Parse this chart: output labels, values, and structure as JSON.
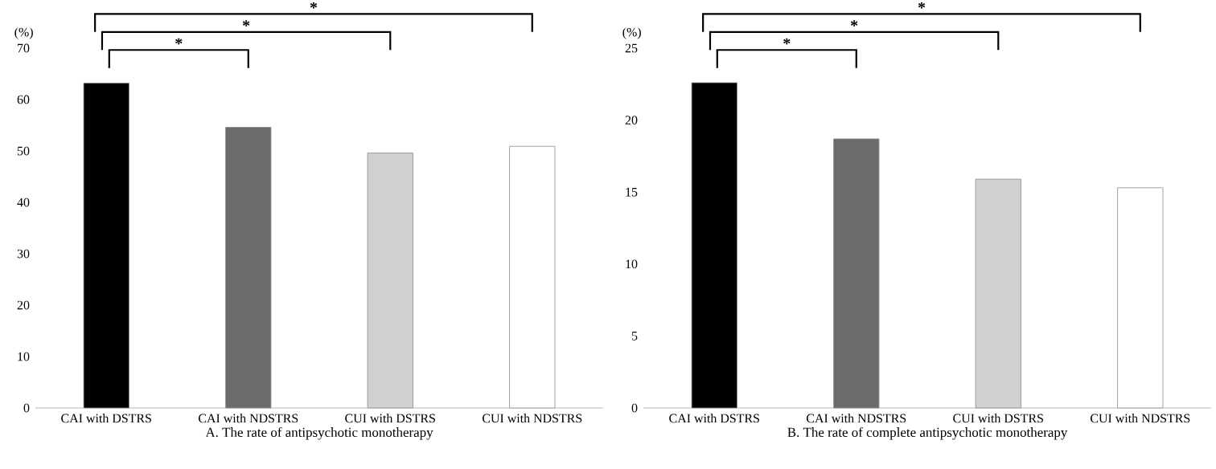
{
  "chart_data": [
    {
      "type": "bar",
      "xlabel": "A. The rate of antipsychotic monotherapy",
      "ylabel": "(%)",
      "categories": [
        "CAI with DSTRS",
        "CAI with NDSTRS",
        "CUI with DSTRS",
        "CUI with NDSTRS"
      ],
      "values": [
        63.2,
        54.6,
        49.6,
        50.9
      ],
      "colors": [
        "#000000",
        "#6b6b6b",
        "#d0d0d0",
        "#ffffff"
      ],
      "ylim": [
        0,
        70
      ],
      "yticks": [
        0,
        10,
        20,
        30,
        40,
        50,
        60,
        70
      ],
      "annotations": [
        "*",
        "*",
        "*"
      ]
    },
    {
      "type": "bar",
      "xlabel": "B. The rate of complete antipsychotic monotherapy",
      "ylabel": "(%)",
      "categories": [
        "CAI with DSTRS",
        "CAI with NDSTRS",
        "CUI with DSTRS",
        "CUI with NDSTRS"
      ],
      "values": [
        22.6,
        18.7,
        15.9,
        15.3
      ],
      "colors": [
        "#000000",
        "#6b6b6b",
        "#d0d0d0",
        "#ffffff"
      ],
      "ylim": [
        0,
        25
      ],
      "yticks": [
        0,
        5,
        10,
        15,
        20,
        25
      ],
      "annotations": [
        "*",
        "*",
        "*"
      ]
    }
  ]
}
